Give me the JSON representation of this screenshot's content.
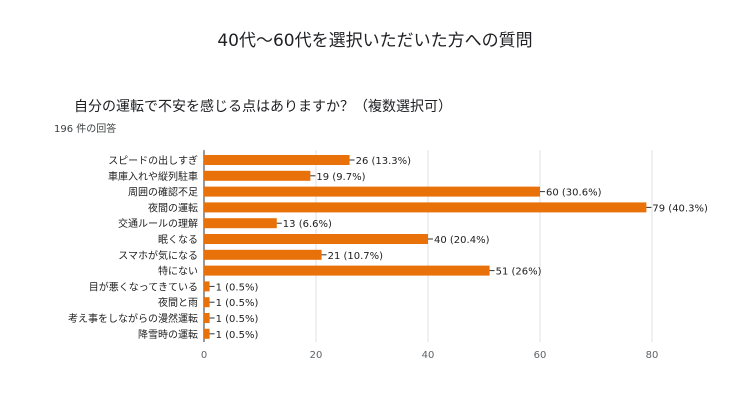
{
  "page": {
    "title": "40代〜60代を選択いただいた方への質問"
  },
  "chart_data": {
    "type": "bar",
    "orientation": "horizontal",
    "title": "自分の運転で不安を感じる点はありますか？（複数選択可）",
    "subtitle": "196 件の回答",
    "categories": [
      "スピードの出しすぎ",
      "車庫入れや縦列駐車",
      "周囲の確認不足",
      "夜間の運転",
      "交通ルールの理解",
      "眠くなる",
      "スマホが気になる",
      "特にない",
      "目が悪くなってきている",
      "夜間と雨",
      "考え事をしながらの漫然運転",
      "降雪時の運転"
    ],
    "values": [
      26,
      19,
      60,
      79,
      13,
      40,
      21,
      51,
      1,
      1,
      1,
      1
    ],
    "data_labels": [
      "26 (13.3%)",
      "19 (9.7%)",
      "60 (30.6%)",
      "79 (40.3%)",
      "13 (6.6%)",
      "40 (20.4%)",
      "21 (10.7%)",
      "51 (26%)",
      "1 (0.5%)",
      "1 (0.5%)",
      "1 (0.5%)",
      "1 (0.5%)"
    ],
    "xlim": [
      0,
      80
    ],
    "xticks": [
      0,
      20,
      40,
      60,
      80
    ],
    "grid": true,
    "bar_color": "#e8710a",
    "grid_color": "#e0e0e0"
  }
}
